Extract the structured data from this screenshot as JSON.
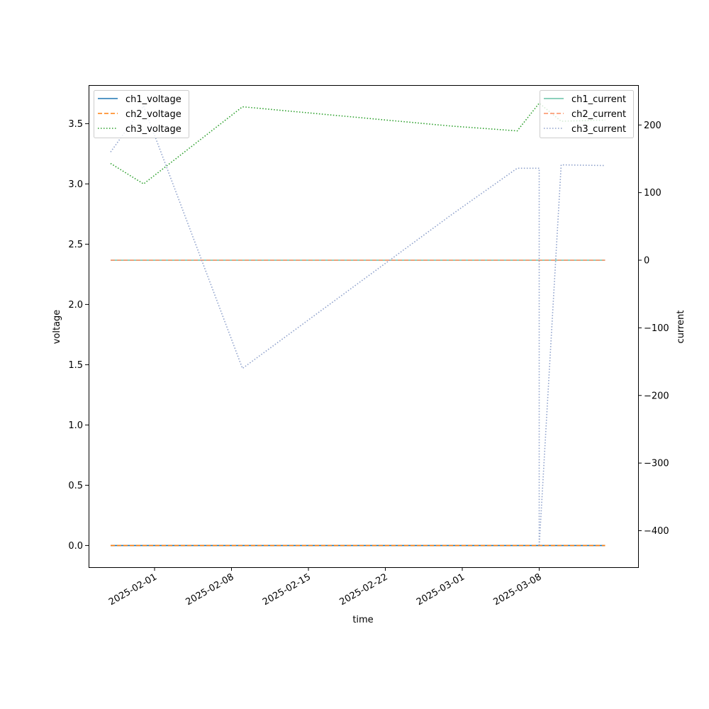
{
  "chart_data": {
    "type": "line",
    "xlabel": "time",
    "ylabel_left": "voltage",
    "ylabel_right": "current",
    "x_range": [
      "2025-01-26",
      "2025-03-17"
    ],
    "ylim_left": [
      -0.18,
      3.82
    ],
    "ylim_right": [
      -454,
      259
    ],
    "x_ticks": [
      "2025-02-01",
      "2025-02-08",
      "2025-02-15",
      "2025-02-22",
      "2025-03-01",
      "2025-03-08"
    ],
    "y_ticks_left": [
      "0.0",
      "0.5",
      "1.0",
      "1.5",
      "2.0",
      "2.5",
      "3.0",
      "3.5"
    ],
    "y_ticks_right": [
      "−400",
      "−300",
      "−200",
      "−100",
      "0",
      "100",
      "200"
    ],
    "y_ticks_right_values": [
      -400,
      -300,
      -200,
      -100,
      0,
      100,
      200
    ],
    "grid": false,
    "legend_left_position": "upper-left",
    "legend_right_position": "upper-right",
    "series": [
      {
        "name": "ch1_voltage",
        "axis": "left",
        "color": "#1f77b4",
        "dash": "solid",
        "x": [
          "2025-01-28",
          "2025-03-14"
        ],
        "y": [
          0,
          0
        ]
      },
      {
        "name": "ch2_voltage",
        "axis": "left",
        "color": "#ff7f0e",
        "dash": "dashed",
        "x": [
          "2025-01-28",
          "2025-03-14"
        ],
        "y": [
          0,
          0
        ]
      },
      {
        "name": "ch3_voltage",
        "axis": "left",
        "color": "#2ca02c",
        "dash": "dotted",
        "x": [
          "2025-01-28",
          "2025-01-31",
          "2025-02-09",
          "2025-02-28",
          "2025-03-06",
          "2025-03-08",
          "2025-03-10",
          "2025-03-14"
        ],
        "y": [
          3.17,
          3.0,
          3.64,
          3.48,
          3.44,
          3.67,
          3.52,
          3.53
        ]
      },
      {
        "name": "ch1_current",
        "axis": "right",
        "color": "#66c2a5",
        "dash": "solid",
        "x": [
          "2025-01-28",
          "2025-03-14"
        ],
        "y": [
          0,
          0
        ]
      },
      {
        "name": "ch2_current",
        "axis": "right",
        "color": "#fc8d62",
        "dash": "dashed",
        "x": [
          "2025-01-28",
          "2025-03-14"
        ],
        "y": [
          0,
          0
        ]
      },
      {
        "name": "ch3_current",
        "axis": "right",
        "color": "#8da0cb",
        "dash": "dotted",
        "x": [
          "2025-01-28",
          "2025-01-31",
          "2025-02-09",
          "2025-02-28",
          "2025-03-06",
          "2025-03-08",
          "2025-03-08",
          "2025-03-10",
          "2025-03-14"
        ],
        "y": [
          160,
          228,
          -160,
          67,
          136,
          136,
          -423,
          141,
          140
        ]
      }
    ]
  }
}
